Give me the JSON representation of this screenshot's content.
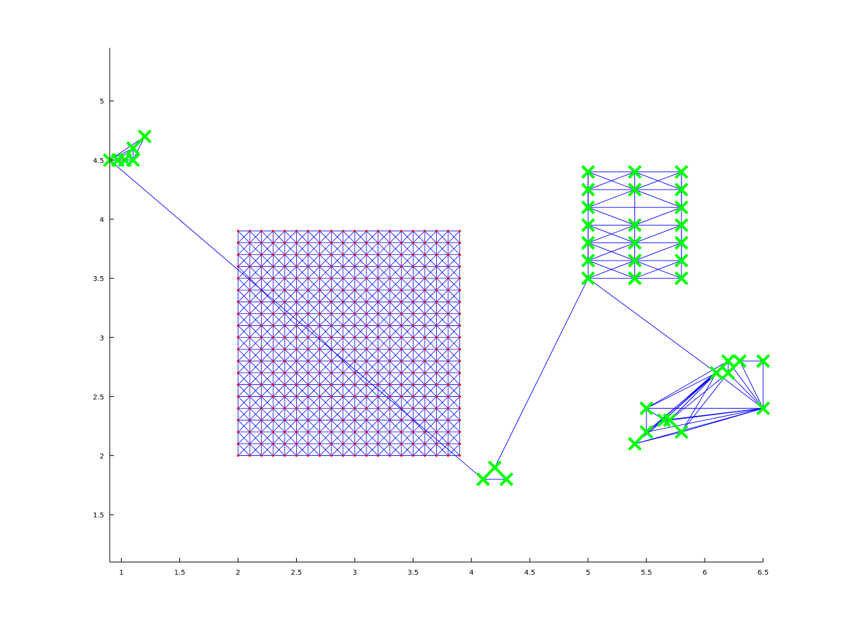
{
  "chart_data": {
    "type": "scatter",
    "title": "",
    "xlabel": "",
    "ylabel": "",
    "xlim": [
      0.9,
      6.5
    ],
    "ylim": [
      1.1,
      5.45
    ],
    "xticks": [
      1,
      1.5,
      2,
      2.5,
      3,
      3.5,
      4,
      4.5,
      5,
      5.5,
      6,
      6.5
    ],
    "xtick_labels": [
      "1",
      "1.5",
      "2",
      "2.5",
      "3",
      "3.5",
      "4",
      "4.5",
      "5",
      "5.5",
      "6",
      "6.5"
    ],
    "yticks": [
      1.5,
      2,
      2.5,
      3,
      3.5,
      4,
      4.5,
      5
    ],
    "ytick_labels": [
      "1.5",
      "2",
      "2.5",
      "3",
      "3.5",
      "4",
      "4.5",
      "5"
    ],
    "grid": false,
    "box": false,
    "colors": {
      "edges": "#0000ff",
      "markers": "#00ff00",
      "grid_nodes": "#ff0000",
      "axes": "#000000"
    },
    "grid_block": {
      "x_start": 2.0,
      "x_end": 3.9,
      "y_start": 2.0,
      "y_end": 3.9,
      "step": 0.1,
      "diagonals": true
    },
    "series": [
      {
        "marker": "x",
        "x": [
          0.9,
          0.97,
          1.03,
          1.1,
          1.1,
          1.2,
          4.1,
          4.2,
          4.3,
          5.0,
          5.0,
          5.0,
          5.0,
          5.0,
          5.0,
          5.0,
          5.4,
          5.4,
          5.4,
          5.4,
          5.4,
          5.4,
          5.4,
          5.8,
          5.8,
          5.8,
          5.8,
          5.8,
          5.8,
          5.8,
          5.4,
          5.5,
          5.5,
          5.65,
          5.7,
          5.8,
          6.1,
          6.2,
          6.2,
          6.3,
          6.5,
          6.5
        ],
        "y": [
          4.5,
          4.5,
          4.5,
          4.5,
          4.6,
          4.7,
          1.8,
          1.9,
          1.8,
          4.4,
          4.25,
          4.1,
          3.95,
          3.8,
          3.65,
          3.5,
          4.4,
          4.25,
          3.95,
          3.8,
          3.65,
          3.5,
          3.5,
          4.4,
          4.25,
          4.1,
          3.95,
          3.8,
          3.65,
          3.5,
          2.1,
          2.2,
          2.4,
          2.3,
          2.3,
          2.2,
          2.7,
          2.8,
          2.7,
          2.8,
          2.8,
          2.4
        ]
      }
    ],
    "edges": [
      [
        0,
        1
      ],
      [
        1,
        2
      ],
      [
        2,
        3
      ],
      [
        0,
        4
      ],
      [
        1,
        4
      ],
      [
        2,
        4
      ],
      [
        3,
        4
      ],
      [
        3,
        5
      ],
      [
        4,
        5
      ],
      [
        0,
        5
      ],
      [
        6,
        7
      ],
      [
        7,
        8
      ],
      [
        6,
        8
      ],
      [
        9,
        10
      ],
      [
        10,
        11
      ],
      [
        11,
        12
      ],
      [
        12,
        13
      ],
      [
        13,
        14
      ],
      [
        14,
        15
      ],
      [
        16,
        17
      ],
      [
        17,
        18
      ],
      [
        18,
        19
      ],
      [
        19,
        20
      ],
      [
        20,
        21
      ],
      [
        23,
        24
      ],
      [
        24,
        25
      ],
      [
        25,
        26
      ],
      [
        26,
        27
      ],
      [
        27,
        28
      ],
      [
        28,
        29
      ],
      [
        9,
        16
      ],
      [
        16,
        23
      ],
      [
        10,
        17
      ],
      [
        17,
        24
      ],
      [
        11,
        25
      ],
      [
        12,
        18
      ],
      [
        18,
        26
      ],
      [
        13,
        19
      ],
      [
        19,
        27
      ],
      [
        14,
        20
      ],
      [
        20,
        28
      ],
      [
        15,
        21
      ],
      [
        21,
        29
      ],
      [
        9,
        17
      ],
      [
        10,
        16
      ],
      [
        16,
        24
      ],
      [
        17,
        23
      ],
      [
        10,
        11
      ],
      [
        11,
        17
      ],
      [
        17,
        25
      ],
      [
        11,
        18
      ],
      [
        18,
        25
      ],
      [
        12,
        19
      ],
      [
        19,
        26
      ],
      [
        13,
        18
      ],
      [
        13,
        20
      ],
      [
        20,
        27
      ],
      [
        14,
        19
      ],
      [
        14,
        21
      ],
      [
        21,
        28
      ],
      [
        15,
        20
      ],
      [
        20,
        29
      ],
      [
        9,
        11
      ],
      [
        23,
        25
      ],
      [
        12,
        14
      ],
      [
        26,
        28
      ],
      [
        30,
        31
      ],
      [
        31,
        32
      ],
      [
        32,
        33
      ],
      [
        33,
        34
      ],
      [
        34,
        35
      ],
      [
        31,
        33
      ],
      [
        30,
        33
      ],
      [
        30,
        35
      ],
      [
        32,
        36
      ],
      [
        32,
        37
      ],
      [
        33,
        36
      ],
      [
        33,
        37
      ],
      [
        34,
        36
      ],
      [
        34,
        38
      ],
      [
        35,
        36
      ],
      [
        35,
        38
      ],
      [
        36,
        37
      ],
      [
        37,
        38
      ],
      [
        38,
        39
      ],
      [
        39,
        40
      ],
      [
        40,
        41
      ],
      [
        37,
        41
      ],
      [
        36,
        41
      ],
      [
        32,
        41
      ],
      [
        33,
        41
      ],
      [
        34,
        41
      ],
      [
        35,
        41
      ],
      [
        30,
        41
      ],
      [
        31,
        41
      ],
      [
        31,
        36
      ],
      [
        30,
        37
      ],
      [
        39,
        41
      ],
      [
        38,
        41
      ],
      [
        34,
        37
      ],
      [
        0,
        6
      ],
      [
        6,
        7
      ],
      [
        7,
        15
      ],
      [
        15,
        36
      ]
    ]
  }
}
